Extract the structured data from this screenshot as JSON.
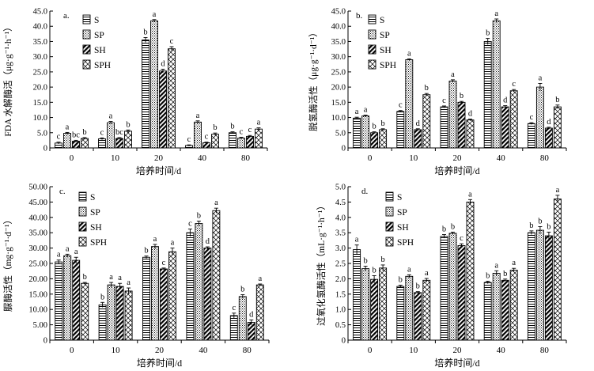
{
  "figure": {
    "legend_labels": [
      "S",
      "SP",
      "SH",
      "SPH"
    ]
  },
  "chart_data": [
    {
      "type": "bar",
      "panel_label": "a.",
      "ylabel": "FDA 水解酶活（μg·g⁻¹·h⁻¹）",
      "xlabel": "培养时间/d",
      "categories": [
        "0",
        "10",
        "20",
        "40",
        "80"
      ],
      "ylim": [
        0,
        45
      ],
      "yticks": [
        "0",
        "5.0",
        "10.0",
        "15.0",
        "20.0",
        "25.0",
        "30.0",
        "35.0",
        "40.0",
        "45.0"
      ],
      "series": [
        {
          "name": "S",
          "values": [
            1.6,
            3.0,
            35.5,
            0.8,
            5.0
          ],
          "errors": [
            0.3,
            0.3,
            0.8,
            0.2,
            0.3
          ],
          "letters": [
            "c",
            "c",
            "b",
            "c",
            "b"
          ]
        },
        {
          "name": "SP",
          "values": [
            4.8,
            8.3,
            41.8,
            8.5,
            3.2
          ],
          "errors": [
            0.3,
            0.4,
            0.4,
            0.4,
            0.3
          ],
          "letters": [
            "a",
            "a",
            "a",
            "a",
            "c"
          ]
        },
        {
          "name": "SH",
          "values": [
            2.2,
            3.1,
            25.3,
            1.7,
            3.8
          ],
          "errors": [
            0.3,
            0.3,
            0.6,
            0.2,
            0.3
          ],
          "letters": [
            "bc",
            "bc",
            "d",
            "c",
            "c"
          ]
        },
        {
          "name": "SPH",
          "values": [
            3.1,
            5.5,
            32.6,
            4.5,
            6.2
          ],
          "errors": [
            0.3,
            0.4,
            0.7,
            0.4,
            0.4
          ],
          "letters": [
            "b",
            "b",
            "c",
            "b",
            "a"
          ]
        }
      ]
    },
    {
      "type": "bar",
      "panel_label": "b.",
      "ylabel": "脱氢酶活性（μg·g⁻¹·d⁻¹）",
      "xlabel": "培养时间/d",
      "categories": [
        "0",
        "10",
        "20",
        "40",
        "80"
      ],
      "ylim": [
        0,
        45
      ],
      "yticks": [
        "0",
        "5.0",
        "10.0",
        "15.0",
        "20.0",
        "25.0",
        "30.0",
        "35.0",
        "40.0",
        "45.0"
      ],
      "series": [
        {
          "name": "S",
          "values": [
            9.8,
            12.0,
            13.5,
            35.0,
            8.0
          ],
          "errors": [
            0.3,
            0.3,
            0.3,
            1.0,
            0.3
          ],
          "letters": [
            "a",
            "c",
            "c",
            "b",
            "c"
          ]
        },
        {
          "name": "SP",
          "values": [
            10.5,
            29.0,
            22.0,
            41.8,
            20.0
          ],
          "errors": [
            0.3,
            0.3,
            0.4,
            0.6,
            1.2
          ],
          "letters": [
            "a",
            "a",
            "a",
            "a",
            "a"
          ]
        },
        {
          "name": "SH",
          "values": [
            5.0,
            6.0,
            15.0,
            13.5,
            6.5
          ],
          "errors": [
            0.3,
            0.3,
            0.3,
            0.4,
            0.3
          ],
          "letters": [
            "b",
            "d",
            "b",
            "d",
            "d"
          ]
        },
        {
          "name": "SPH",
          "values": [
            6.0,
            17.5,
            9.2,
            18.8,
            13.5
          ],
          "errors": [
            0.3,
            0.4,
            0.3,
            0.4,
            0.6
          ],
          "letters": [
            "b",
            "b",
            "d",
            "c",
            "b"
          ]
        }
      ]
    },
    {
      "type": "bar",
      "panel_label": "c.",
      "ylabel": "脲酶活性（mg·g⁻¹·d⁻¹）",
      "xlabel": "培养时间/d",
      "categories": [
        "0",
        "10",
        "20",
        "40",
        "80"
      ],
      "ylim": [
        0,
        50
      ],
      "yticks": [
        "0",
        "5.00",
        "10.00",
        "15.00",
        "20.00",
        "25.00",
        "30.00",
        "35.00",
        "40.00",
        "45.00",
        "50.00"
      ],
      "series": [
        {
          "name": "S",
          "values": [
            25.5,
            11.5,
            27.0,
            35.0,
            8.0
          ],
          "errors": [
            0.6,
            0.8,
            0.4,
            1.2,
            0.8
          ],
          "letters": [
            "a",
            "b",
            "b",
            "c",
            "c"
          ]
        },
        {
          "name": "SP",
          "values": [
            27.5,
            18.0,
            30.5,
            38.0,
            14.2
          ],
          "errors": [
            0.5,
            0.8,
            0.7,
            0.8,
            0.6
          ],
          "letters": [
            "a",
            "a",
            "a",
            "b",
            "b"
          ]
        },
        {
          "name": "SH",
          "values": [
            26.0,
            17.5,
            23.2,
            30.0,
            5.8
          ],
          "errors": [
            1.0,
            1.0,
            0.3,
            0.4,
            0.8
          ],
          "letters": [
            "a",
            "a",
            "c",
            "d",
            "d"
          ]
        },
        {
          "name": "SPH",
          "values": [
            18.5,
            16.0,
            28.8,
            42.2,
            18.0
          ],
          "errors": [
            0.3,
            1.0,
            1.2,
            0.8,
            0.3
          ],
          "letters": [
            "b",
            "a",
            "a",
            "a",
            "a"
          ]
        }
      ]
    },
    {
      "type": "bar",
      "panel_label": "d.",
      "ylabel": "过氧化氢酶活性（mL·g⁻¹·h⁻¹）",
      "xlabel": "培养时间/d",
      "categories": [
        "0",
        "10",
        "20",
        "40",
        "80"
      ],
      "ylim": [
        0,
        5
      ],
      "yticks": [
        "0",
        "0.5",
        "1.0",
        "1.5",
        "2.0",
        "2.5",
        "3.0",
        "3.5",
        "4.0",
        "4.5",
        "5.0"
      ],
      "series": [
        {
          "name": "S",
          "values": [
            2.95,
            1.75,
            3.38,
            1.88,
            3.5
          ],
          "errors": [
            0.15,
            0.04,
            0.06,
            0.04,
            0.06
          ],
          "letters": [
            "a",
            "b",
            "b",
            "b",
            "b"
          ]
        },
        {
          "name": "SP",
          "values": [
            2.33,
            2.08,
            3.48,
            2.18,
            3.58
          ],
          "errors": [
            0.08,
            0.05,
            0.04,
            0.08,
            0.12
          ],
          "letters": [
            "b",
            "a",
            "b",
            "a",
            "b"
          ]
        },
        {
          "name": "SH",
          "values": [
            1.98,
            1.55,
            3.08,
            1.95,
            3.4
          ],
          "errors": [
            0.12,
            0.03,
            0.06,
            0.04,
            0.12
          ],
          "letters": [
            "b",
            "b",
            "c",
            "b",
            "b"
          ]
        },
        {
          "name": "SPH",
          "values": [
            2.35,
            1.95,
            4.5,
            2.28,
            4.6
          ],
          "errors": [
            0.1,
            0.06,
            0.08,
            0.06,
            0.12
          ],
          "letters": [
            "b",
            "a",
            "a",
            "a",
            "a"
          ]
        }
      ]
    }
  ]
}
